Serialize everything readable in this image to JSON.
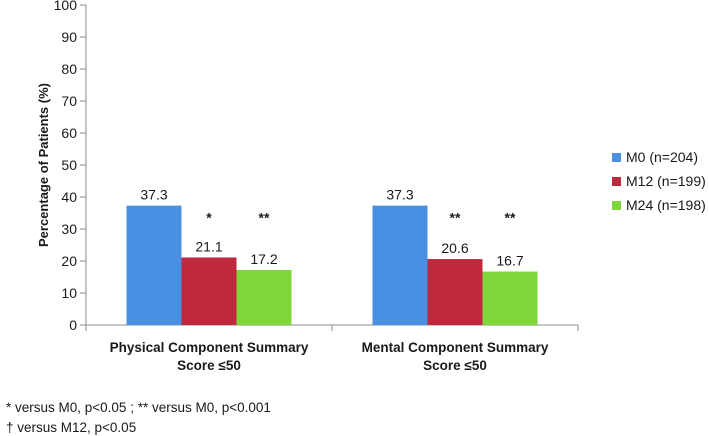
{
  "chart_data": {
    "type": "bar",
    "ylabel": "Percentage of Patients (%)",
    "ylim": [
      0,
      100
    ],
    "yticks": [
      0,
      10,
      20,
      30,
      40,
      50,
      60,
      70,
      80,
      90,
      100
    ],
    "categories": [
      [
        "Physical Component Summary",
        "Score ≤50"
      ],
      [
        "Mental Component Summary",
        "Score ≤50"
      ]
    ],
    "series": [
      {
        "name": "M0 (n=204)",
        "color": "#4a90e2",
        "values": [
          37.3,
          37.3
        ],
        "marks": [
          "",
          ""
        ]
      },
      {
        "name": "M12 (n=199)",
        "color": "#c0283d",
        "values": [
          21.1,
          20.6
        ],
        "marks": [
          "*",
          "**"
        ]
      },
      {
        "name": "M24 (n=198)",
        "color": "#7fd63a",
        "values": [
          17.2,
          16.7
        ],
        "marks": [
          "**",
          "**"
        ]
      }
    ],
    "grid": false,
    "legend_position": "right"
  },
  "footnotes": [
    "* versus M0, p<0.05 ; ** versus M0, p<0.001",
    "† versus M12, p<0.05"
  ]
}
